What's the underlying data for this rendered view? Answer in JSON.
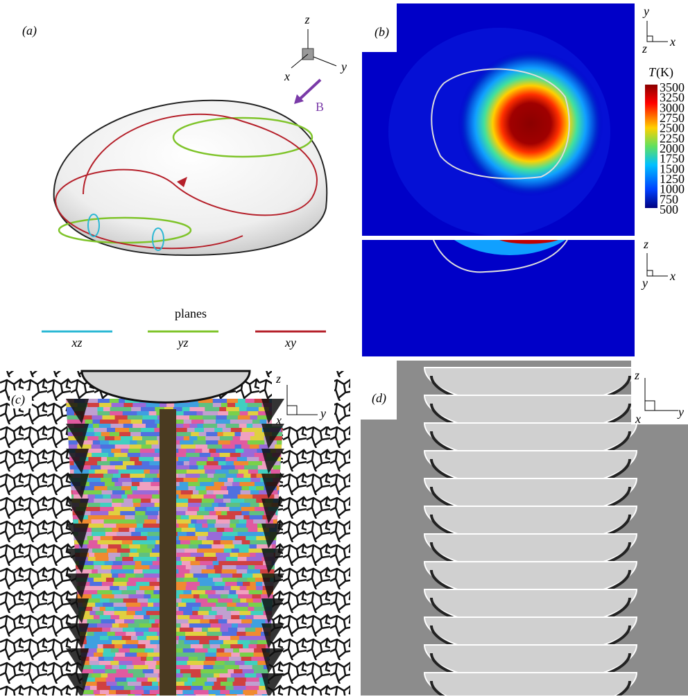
{
  "panels": {
    "a": {
      "label": "(a)",
      "axes": {
        "z": "z",
        "x": "x",
        "y": "y"
      },
      "field": "B",
      "legend": {
        "title": "planes",
        "items": [
          {
            "label": "xz",
            "color": "#2bb8d4"
          },
          {
            "label": "yz",
            "color": "#7fc42a"
          },
          {
            "label": "xy",
            "color": "#b5202a"
          }
        ]
      }
    },
    "b": {
      "label": "(b)",
      "axes_top": {
        "y": "y",
        "x": "x",
        "z": "z"
      },
      "axes_bottom": {
        "z": "z",
        "x": "x",
        "y": "y"
      },
      "colorbar": {
        "symbol": "T",
        "unit": "(K)",
        "ticks": [
          3500,
          3250,
          3000,
          2750,
          2500,
          2250,
          2000,
          1750,
          1500,
          1250,
          1000,
          750,
          500
        ]
      }
    },
    "c": {
      "label": "(c)",
      "axes": {
        "z": "z",
        "x": "x",
        "y": "y"
      }
    },
    "d": {
      "label": "(d)",
      "axes": {
        "z": "z",
        "x": "x",
        "y": "y"
      }
    }
  }
}
